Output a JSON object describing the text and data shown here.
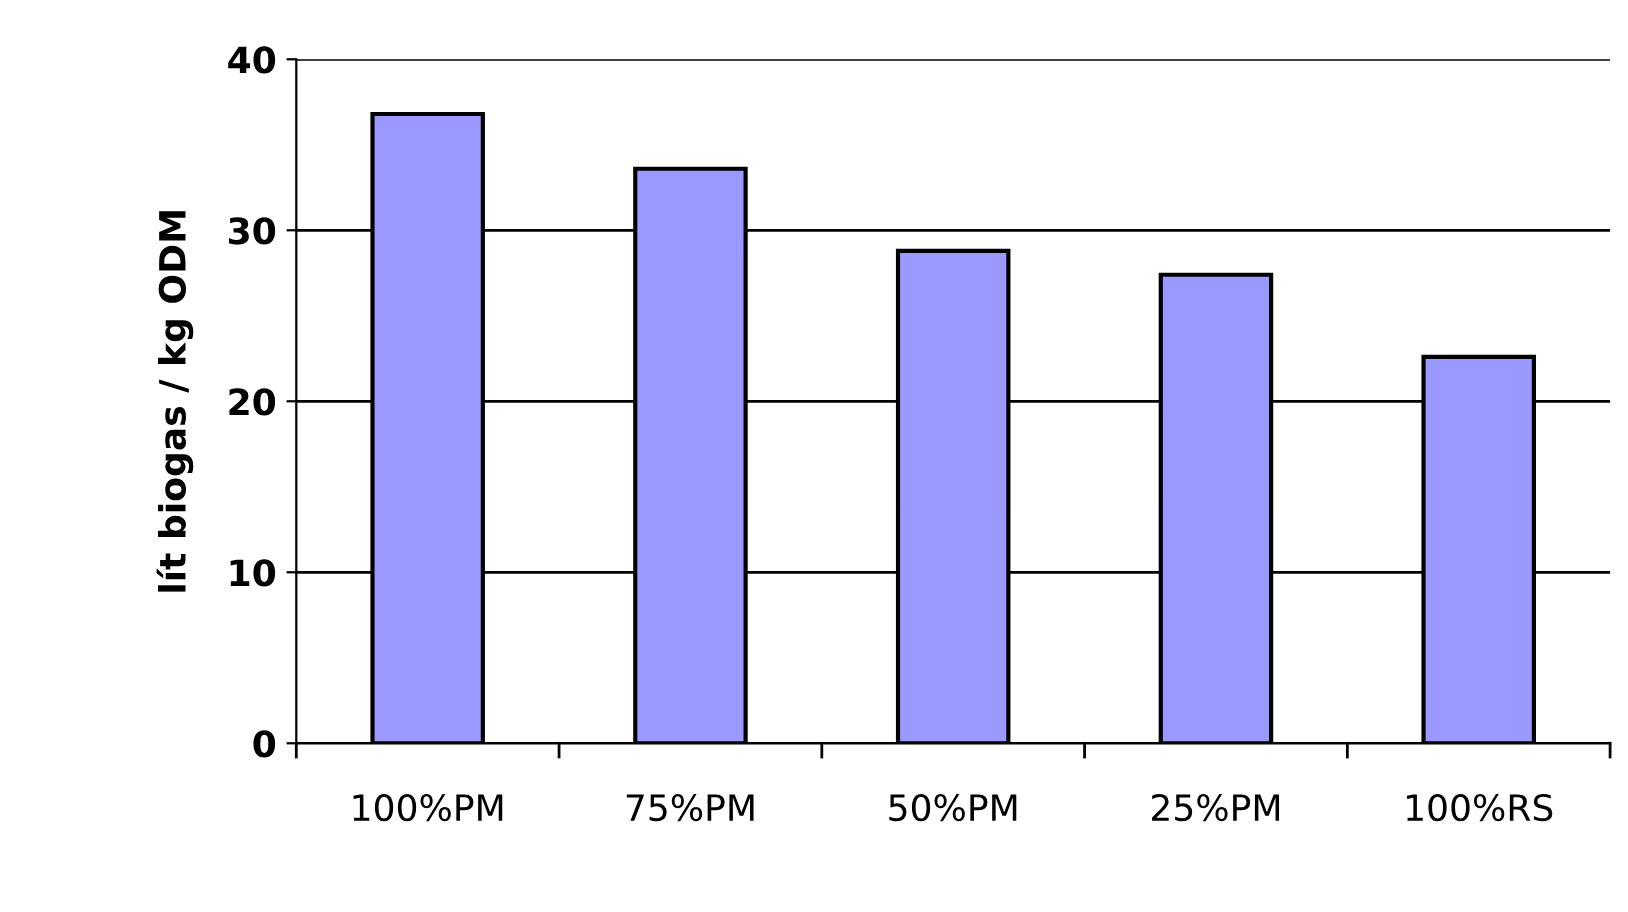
{
  "chart_data": {
    "type": "bar",
    "ylabel": "lít biogas / kg ODM",
    "categories": [
      "100%PM",
      "75%PM",
      "50%PM",
      "25%PM",
      "100%RS"
    ],
    "values": [
      36.8,
      33.6,
      28.8,
      27.4,
      22.6
    ],
    "color": "#9999ff",
    "ylim": [
      0,
      40
    ],
    "yticks": [
      0,
      10,
      20,
      30,
      40
    ],
    "grid": "y",
    "legend": false
  }
}
